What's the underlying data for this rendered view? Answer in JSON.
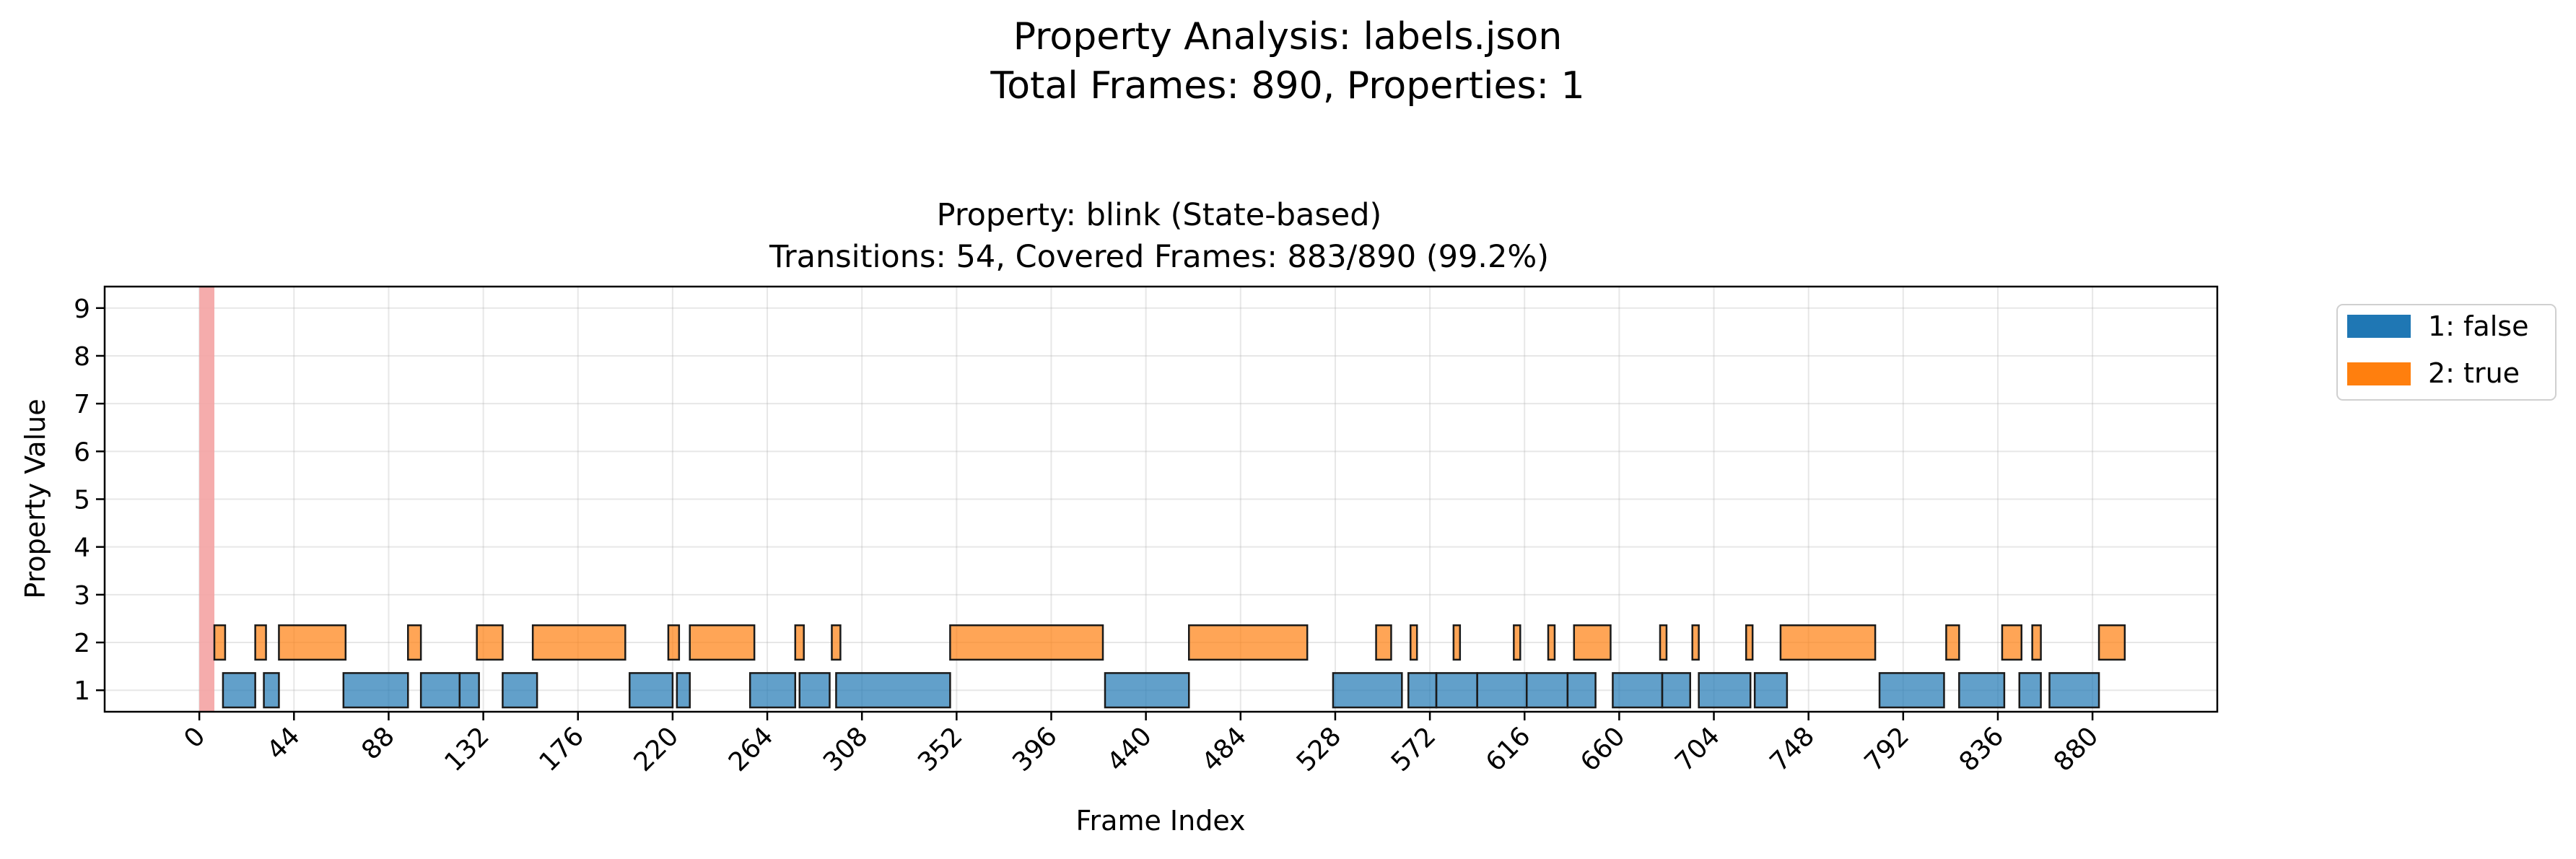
{
  "figure": {
    "suptitle_line1": "Property Analysis: labels.json",
    "suptitle_line2": "Total Frames: 890, Properties: 1"
  },
  "chart_data": {
    "type": "bar",
    "orientation": "horizontal-intervals",
    "title_line1": "Property: blink (State-based)",
    "title_line2": "Transitions: 54, Covered Frames: 883/890 (99.2%)",
    "xlabel": "Frame Index",
    "ylabel": "Property Value",
    "xlim": [
      -44,
      938
    ],
    "ylim": [
      0.55,
      9.45
    ],
    "xticks": [
      0,
      44,
      88,
      132,
      176,
      220,
      264,
      308,
      352,
      396,
      440,
      484,
      528,
      572,
      616,
      660,
      704,
      748,
      792,
      836,
      880
    ],
    "yticks": [
      1,
      2,
      3,
      4,
      5,
      6,
      7,
      8,
      9
    ],
    "grid": true,
    "legend_position": "outside upper right",
    "legend": [
      {
        "label": "1: false",
        "color": "#1f77b4"
      },
      {
        "label": "2: true",
        "color": "#ff7f0e"
      }
    ],
    "uncovered_region": {
      "start": 0,
      "end": 7,
      "color": "#f4a3a3"
    },
    "series": [
      {
        "name": "1: false",
        "value": 1,
        "color": "#1f77b4",
        "intervals": [
          [
            11,
            26
          ],
          [
            30,
            37
          ],
          [
            67,
            97
          ],
          [
            103,
            121
          ],
          [
            121,
            130
          ],
          [
            141,
            157
          ],
          [
            200,
            220
          ],
          [
            222,
            228
          ],
          [
            256,
            277
          ],
          [
            279,
            293
          ],
          [
            296,
            349
          ],
          [
            421,
            460
          ],
          [
            527,
            559
          ],
          [
            562,
            575
          ],
          [
            575,
            594
          ],
          [
            594,
            617
          ],
          [
            617,
            636
          ],
          [
            636,
            649
          ],
          [
            657,
            680
          ],
          [
            680,
            693
          ],
          [
            697,
            721
          ],
          [
            723,
            738
          ],
          [
            781,
            811
          ],
          [
            818,
            839
          ],
          [
            846,
            856
          ],
          [
            860,
            883
          ]
        ]
      },
      {
        "name": "2: true",
        "value": 2,
        "color": "#ff7f0e",
        "intervals": [
          [
            7,
            12
          ],
          [
            26,
            31
          ],
          [
            37,
            68
          ],
          [
            97,
            103
          ],
          [
            129,
            141
          ],
          [
            155,
            198
          ],
          [
            218,
            223
          ],
          [
            228,
            258
          ],
          [
            277,
            281
          ],
          [
            294,
            298
          ],
          [
            349,
            420
          ],
          [
            460,
            515
          ],
          [
            547,
            554
          ],
          [
            563,
            566
          ],
          [
            583,
            586
          ],
          [
            611,
            614
          ],
          [
            627,
            630
          ],
          [
            639,
            656
          ],
          [
            679,
            682
          ],
          [
            694,
            697
          ],
          [
            719,
            722
          ],
          [
            735,
            779
          ],
          [
            812,
            818
          ],
          [
            838,
            847
          ],
          [
            852,
            856
          ],
          [
            883,
            895
          ]
        ]
      }
    ]
  }
}
